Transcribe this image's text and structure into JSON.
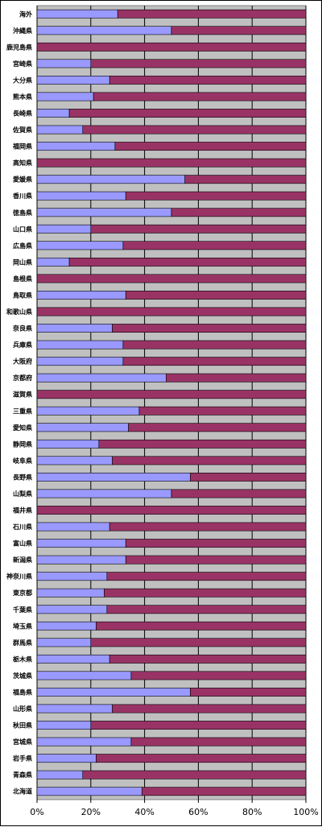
{
  "chart_data": {
    "type": "bar",
    "orientation": "horizontal",
    "stacked": "percent",
    "title": "",
    "xlabel": "",
    "ylabel": "",
    "xlim": [
      0,
      100
    ],
    "x_ticks": [
      "0%",
      "20%",
      "40%",
      "60%",
      "80%",
      "100%"
    ],
    "grid": true,
    "legend": "none",
    "colors": {
      "series_1": "#9999ff",
      "series_2": "#993366",
      "plot_background": "#c0c0c0",
      "gridline": "#000000"
    },
    "categories": [
      "海外",
      "沖縄県",
      "鹿児島県",
      "宮崎県",
      "大分県",
      "熊本県",
      "長崎県",
      "佐賀県",
      "福岡県",
      "高知県",
      "愛媛県",
      "香川県",
      "徳島県",
      "山口県",
      "広島県",
      "岡山県",
      "島根県",
      "鳥取県",
      "和歌山県",
      "奈良県",
      "兵庫県",
      "大阪府",
      "京都府",
      "滋賀県",
      "三重県",
      "愛知県",
      "静岡県",
      "岐阜県",
      "長野県",
      "山梨県",
      "福井県",
      "石川県",
      "富山県",
      "新潟県",
      "神奈川県",
      "東京都",
      "千葉県",
      "埼玉県",
      "群馬県",
      "栃木県",
      "茨城県",
      "福島県",
      "山形県",
      "秋田県",
      "宮城県",
      "岩手県",
      "青森県",
      "北海道"
    ],
    "series": [
      {
        "values": [
          30,
          50,
          0,
          20,
          27,
          21,
          12,
          17,
          29,
          0,
          55,
          33,
          50,
          20,
          32,
          12,
          0,
          33,
          0,
          28,
          32,
          32,
          48,
          0,
          38,
          34,
          23,
          28,
          57,
          50,
          0,
          27,
          33,
          33,
          26,
          25,
          26,
          22,
          20,
          27,
          35,
          57,
          28,
          20,
          35,
          22,
          17,
          39
        ]
      },
      {
        "values": [
          70,
          50,
          100,
          80,
          73,
          79,
          88,
          83,
          71,
          100,
          45,
          67,
          50,
          80,
          68,
          88,
          100,
          67,
          100,
          72,
          68,
          68,
          52,
          100,
          62,
          66,
          77,
          72,
          43,
          50,
          100,
          73,
          67,
          67,
          74,
          75,
          74,
          78,
          80,
          73,
          65,
          43,
          72,
          80,
          65,
          78,
          83,
          61
        ]
      }
    ]
  }
}
